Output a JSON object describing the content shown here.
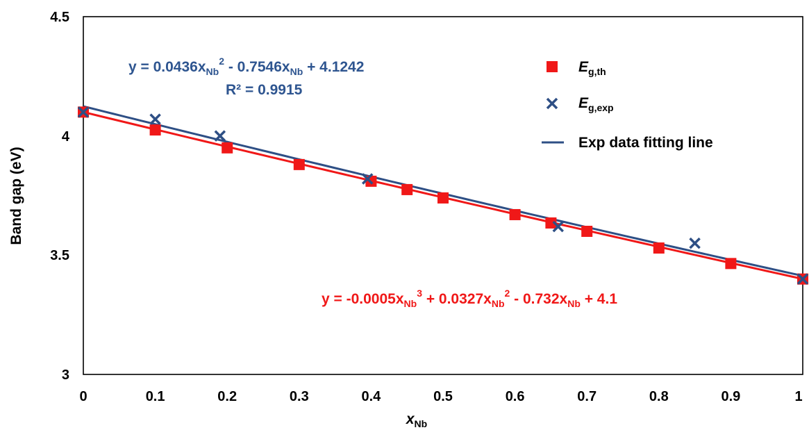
{
  "colors": {
    "theory": "#f01818",
    "experiment": "#2e4f85",
    "fit_line": "#2e4f85",
    "equation_blue": "#2e5590",
    "equation_red": "#f01818"
  },
  "chart_data": {
    "type": "scatter",
    "xlabel": {
      "main": "x",
      "sub": "Nb"
    },
    "ylabel": "Band gap (eV)",
    "xlim": [
      0,
      1
    ],
    "ylim": [
      3,
      4.5
    ],
    "x_ticks": [
      "0",
      "0.1",
      "0.2",
      "0.3",
      "0.4",
      "0.5",
      "0.6",
      "0.7",
      "0.8",
      "0.9",
      "1"
    ],
    "y_ticks": [
      "3",
      "3.5",
      "4",
      "4.5"
    ],
    "grid": false,
    "legend_position": "top-right",
    "series": [
      {
        "key": "theory",
        "marker": "square",
        "legend": {
          "main": "E",
          "sub": "g,th"
        },
        "x": [
          0,
          0.1,
          0.2,
          0.3,
          0.4,
          0.45,
          0.5,
          0.6,
          0.65,
          0.7,
          0.8,
          0.9,
          1
        ],
        "y": [
          4.1,
          4.025,
          3.95,
          3.88,
          3.81,
          3.775,
          3.74,
          3.67,
          3.635,
          3.6,
          3.53,
          3.465,
          3.4
        ]
      },
      {
        "key": "experiment",
        "marker": "x",
        "legend": {
          "main": "E",
          "sub": "g,exp"
        },
        "x": [
          0,
          0.1,
          0.19,
          0.395,
          0.66,
          0.85,
          1
        ],
        "y": [
          4.1,
          4.07,
          4.0,
          3.82,
          3.62,
          3.55,
          3.4
        ]
      },
      {
        "key": "fit_line",
        "marker": "line",
        "legend": {
          "main": "Exp data fitting line",
          "sub": ""
        },
        "coefficients": [
          4.1242,
          -0.7546,
          0.0436
        ]
      },
      {
        "key": "theory_fit",
        "marker": "line",
        "coefficients": [
          4.1,
          -0.732,
          0.0327,
          -0.0005
        ]
      }
    ],
    "annotations": {
      "blue_equation": [
        "y = 0.0436x",
        "Nb",
        "2",
        " - 0.7546x",
        "Nb",
        " + 4.1242"
      ],
      "r_squared": "R² = 0.9915",
      "red_equation": [
        "y = -0.0005x",
        "Nb",
        "3",
        " + 0.0327x",
        "Nb",
        "2",
        " - 0.732x",
        "Nb",
        " + 4.1"
      ]
    }
  }
}
